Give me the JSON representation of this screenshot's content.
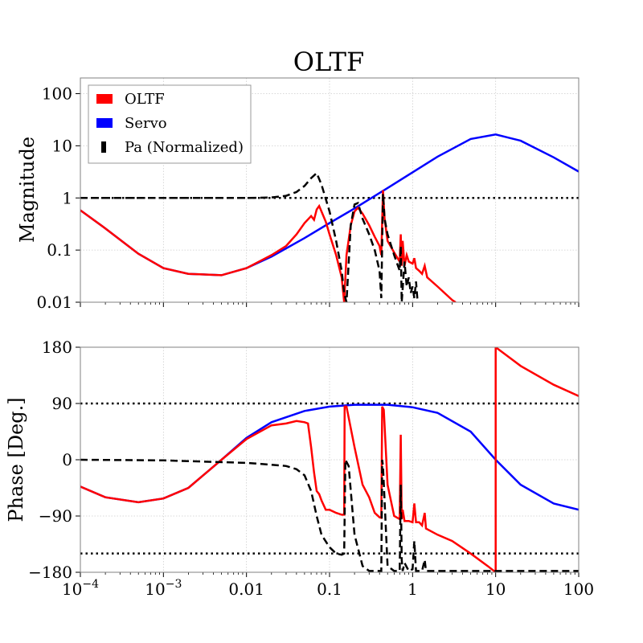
{
  "chart_data": {
    "type": "line",
    "title": "OLTF",
    "x_scale": "log",
    "xlim": [
      0.0001,
      100
    ],
    "x_tick_labels": [
      "10^-4",
      "10^-3",
      "0.01",
      "0.1",
      "1",
      "10",
      "100"
    ],
    "legend": {
      "placement": "top-left",
      "entries": [
        {
          "name": "OLTF",
          "color": "#ff0000"
        },
        {
          "name": "Servo",
          "color": "#0000ff"
        },
        {
          "name": "Pa (Normalized)",
          "color": "#000000"
        }
      ]
    },
    "magnitude": {
      "ylabel": "Magnitude",
      "y_scale": "log",
      "ylim": [
        0.01,
        200
      ],
      "y_tick_labels": [
        "0.01",
        "0.1",
        "1",
        "10",
        "100"
      ],
      "grid": true,
      "reference_lines": [
        1
      ],
      "series": [
        {
          "name": "Servo",
          "color": "#0000ff",
          "style": "solid",
          "points": [
            [
              0.0001,
              0.58
            ],
            [
              0.0002,
              0.26
            ],
            [
              0.0005,
              0.085
            ],
            [
              0.001,
              0.045
            ],
            [
              0.002,
              0.035
            ],
            [
              0.005,
              0.033
            ],
            [
              0.01,
              0.045
            ],
            [
              0.02,
              0.075
            ],
            [
              0.05,
              0.17
            ],
            [
              0.1,
              0.33
            ],
            [
              0.2,
              0.63
            ],
            [
              0.5,
              1.55
            ],
            [
              1,
              3.1
            ],
            [
              2,
              6.2
            ],
            [
              5,
              13.5
            ],
            [
              10,
              16.5
            ],
            [
              20,
              12.5
            ],
            [
              50,
              6
            ],
            [
              100,
              3.2
            ]
          ]
        },
        {
          "name": "OLTF",
          "color": "#ff0000",
          "style": "solid",
          "points": [
            [
              0.0001,
              0.58
            ],
            [
              0.0002,
              0.26
            ],
            [
              0.0005,
              0.085
            ],
            [
              0.001,
              0.045
            ],
            [
              0.002,
              0.035
            ],
            [
              0.005,
              0.033
            ],
            [
              0.01,
              0.045
            ],
            [
              0.02,
              0.08
            ],
            [
              0.03,
              0.12
            ],
            [
              0.04,
              0.2
            ],
            [
              0.05,
              0.33
            ],
            [
              0.06,
              0.45
            ],
            [
              0.065,
              0.38
            ],
            [
              0.07,
              0.6
            ],
            [
              0.075,
              0.7
            ],
            [
              0.08,
              0.55
            ],
            [
              0.09,
              0.35
            ],
            [
              0.1,
              0.2
            ],
            [
              0.12,
              0.08
            ],
            [
              0.14,
              0.03
            ],
            [
              0.15,
              0.01
            ],
            [
              0.16,
              0.08
            ],
            [
              0.18,
              0.3
            ],
            [
              0.2,
              0.55
            ],
            [
              0.22,
              0.65
            ],
            [
              0.25,
              0.5
            ],
            [
              0.3,
              0.3
            ],
            [
              0.35,
              0.18
            ],
            [
              0.4,
              0.12
            ],
            [
              0.42,
              0.08
            ],
            [
              0.44,
              1.4
            ],
            [
              0.46,
              0.4
            ],
            [
              0.5,
              0.15
            ],
            [
              0.6,
              0.09
            ],
            [
              0.7,
              0.06
            ],
            [
              0.72,
              0.2
            ],
            [
              0.74,
              0.05
            ],
            [
              0.76,
              0.15
            ],
            [
              0.8,
              0.05
            ],
            [
              0.85,
              0.08
            ],
            [
              0.9,
              0.06
            ],
            [
              1.0,
              0.055
            ],
            [
              1.05,
              0.07
            ],
            [
              1.1,
              0.045
            ],
            [
              1.2,
              0.04
            ],
            [
              1.3,
              0.035
            ],
            [
              1.4,
              0.05
            ],
            [
              1.5,
              0.03
            ],
            [
              2,
              0.02
            ],
            [
              3,
              0.011
            ],
            [
              3.3,
              0.01
            ]
          ]
        },
        {
          "name": "Pa (Normalized)",
          "color": "#000000",
          "style": "dashed",
          "points": [
            [
              0.0001,
              1
            ],
            [
              0.001,
              1
            ],
            [
              0.01,
              1
            ],
            [
              0.02,
              1.02
            ],
            [
              0.03,
              1.1
            ],
            [
              0.04,
              1.3
            ],
            [
              0.05,
              1.7
            ],
            [
              0.06,
              2.4
            ],
            [
              0.07,
              3.0
            ],
            [
              0.08,
              1.8
            ],
            [
              0.1,
              0.55
            ],
            [
              0.12,
              0.15
            ],
            [
              0.14,
              0.04
            ],
            [
              0.15,
              0.015
            ],
            [
              0.16,
              0.01
            ],
            [
              0.18,
              0.3
            ],
            [
              0.2,
              0.75
            ],
            [
              0.22,
              0.8
            ],
            [
              0.25,
              0.4
            ],
            [
              0.3,
              0.2
            ],
            [
              0.35,
              0.1
            ],
            [
              0.4,
              0.04
            ],
            [
              0.42,
              0.012
            ],
            [
              0.44,
              1.2
            ],
            [
              0.46,
              0.4
            ],
            [
              0.5,
              0.2
            ],
            [
              0.6,
              0.08
            ],
            [
              0.7,
              0.04
            ],
            [
              0.72,
              0.12
            ],
            [
              0.74,
              0.01
            ],
            [
              0.8,
              0.06
            ],
            [
              0.85,
              0.02
            ],
            [
              0.9,
              0.03
            ],
            [
              0.95,
              0.015
            ],
            [
              1.0,
              0.02
            ],
            [
              1.05,
              0.012
            ],
            [
              1.1,
              0.025
            ],
            [
              1.15,
              0.01
            ]
          ]
        }
      ]
    },
    "phase": {
      "ylabel": "Phase [Deg.]",
      "ylim": [
        -180,
        180
      ],
      "y_ticks": [
        -180,
        -90,
        0,
        90,
        180
      ],
      "grid": true,
      "reference_lines": [
        90,
        -150
      ],
      "series": [
        {
          "name": "Servo",
          "color": "#0000ff",
          "style": "solid",
          "points": [
            [
              0.0001,
              -43
            ],
            [
              0.0002,
              -60
            ],
            [
              0.0005,
              -68
            ],
            [
              0.001,
              -62
            ],
            [
              0.002,
              -45
            ],
            [
              0.005,
              0
            ],
            [
              0.01,
              35
            ],
            [
              0.02,
              60
            ],
            [
              0.05,
              78
            ],
            [
              0.1,
              85
            ],
            [
              0.2,
              88
            ],
            [
              0.5,
              88
            ],
            [
              1,
              84
            ],
            [
              2,
              75
            ],
            [
              5,
              45
            ],
            [
              10,
              0
            ],
            [
              20,
              -40
            ],
            [
              50,
              -70
            ],
            [
              100,
              -80
            ]
          ]
        },
        {
          "name": "OLTF",
          "color": "#ff0000",
          "style": "solid",
          "points": [
            [
              0.0001,
              -43
            ],
            [
              0.0002,
              -60
            ],
            [
              0.0005,
              -68
            ],
            [
              0.001,
              -62
            ],
            [
              0.002,
              -45
            ],
            [
              0.005,
              0
            ],
            [
              0.01,
              33
            ],
            [
              0.02,
              55
            ],
            [
              0.03,
              58
            ],
            [
              0.04,
              62
            ],
            [
              0.05,
              60
            ],
            [
              0.055,
              58
            ],
            [
              0.06,
              20
            ],
            [
              0.065,
              -20
            ],
            [
              0.07,
              -50
            ],
            [
              0.075,
              -55
            ],
            [
              0.08,
              -65
            ],
            [
              0.09,
              -80
            ],
            [
              0.1,
              -80
            ],
            [
              0.12,
              -85
            ],
            [
              0.14,
              -88
            ],
            [
              0.15,
              -88
            ],
            [
              0.152,
              85
            ],
            [
              0.16,
              85
            ],
            [
              0.2,
              20
            ],
            [
              0.25,
              -40
            ],
            [
              0.3,
              -60
            ],
            [
              0.35,
              -85
            ],
            [
              0.4,
              -92
            ],
            [
              0.42,
              -93
            ],
            [
              0.43,
              85
            ],
            [
              0.45,
              80
            ],
            [
              0.5,
              -40
            ],
            [
              0.6,
              -90
            ],
            [
              0.7,
              -95
            ],
            [
              0.72,
              40
            ],
            [
              0.74,
              -95
            ],
            [
              0.76,
              -80
            ],
            [
              0.8,
              -98
            ],
            [
              0.9,
              -98
            ],
            [
              1.0,
              -100
            ],
            [
              1.05,
              -70
            ],
            [
              1.1,
              -100
            ],
            [
              1.2,
              -100
            ],
            [
              1.3,
              -105
            ],
            [
              1.4,
              -85
            ],
            [
              1.45,
              -110
            ],
            [
              2,
              -120
            ],
            [
              3,
              -130
            ],
            [
              5,
              -150
            ],
            [
              8,
              -170
            ],
            [
              10,
              -180
            ],
            [
              10.01,
              180
            ],
            [
              20,
              150
            ],
            [
              50,
              120
            ],
            [
              100,
              102
            ]
          ]
        },
        {
          "name": "Pa (Normalized)",
          "color": "#000000",
          "style": "dashed",
          "points": [
            [
              0.0001,
              0
            ],
            [
              0.001,
              -1
            ],
            [
              0.01,
              -5
            ],
            [
              0.02,
              -8
            ],
            [
              0.03,
              -10
            ],
            [
              0.04,
              -15
            ],
            [
              0.05,
              -25
            ],
            [
              0.06,
              -50
            ],
            [
              0.07,
              -90
            ],
            [
              0.08,
              -120
            ],
            [
              0.1,
              -140
            ],
            [
              0.12,
              -150
            ],
            [
              0.14,
              -152
            ],
            [
              0.15,
              -150
            ],
            [
              0.155,
              0
            ],
            [
              0.17,
              -10
            ],
            [
              0.2,
              -120
            ],
            [
              0.25,
              -170
            ],
            [
              0.3,
              -178
            ],
            [
              0.4,
              -178
            ],
            [
              0.42,
              -178
            ],
            [
              0.43,
              0
            ],
            [
              0.44,
              -10
            ],
            [
              0.5,
              -170
            ],
            [
              0.6,
              -178
            ],
            [
              0.7,
              -178
            ],
            [
              0.72,
              -40
            ],
            [
              0.74,
              -160
            ],
            [
              0.76,
              -178
            ],
            [
              0.8,
              -165
            ],
            [
              0.9,
              -178
            ],
            [
              1.0,
              -175
            ],
            [
              1.05,
              -130
            ],
            [
              1.1,
              -178
            ],
            [
              1.3,
              -178
            ],
            [
              1.4,
              -160
            ],
            [
              1.45,
              -178
            ],
            [
              3,
              -178
            ],
            [
              10,
              -178
            ],
            [
              100,
              -178
            ]
          ]
        }
      ]
    }
  }
}
